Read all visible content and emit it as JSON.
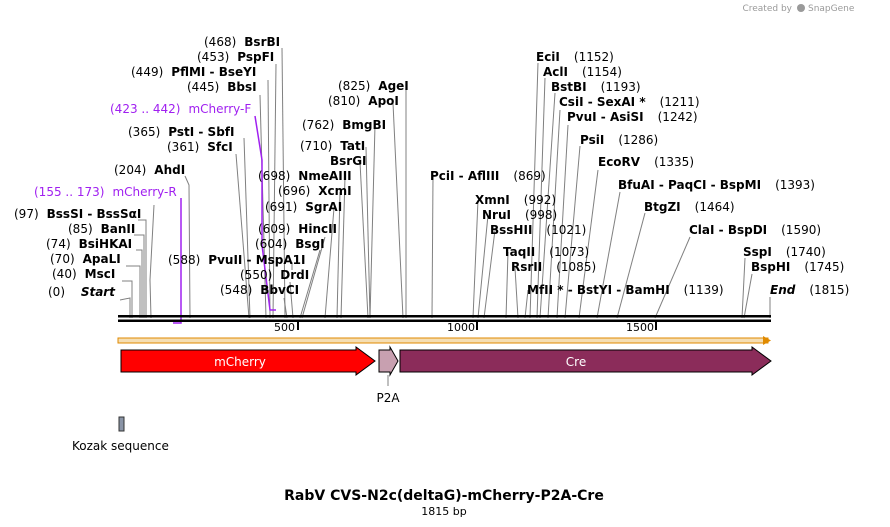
{
  "title": "RabV CVS-N2c(deltaG)-mCherry-P2A-Cre",
  "length_label": "1815 bp",
  "length": 1815,
  "credit": {
    "prefix": "Created by",
    "brand": "SnapGene"
  },
  "colors": {
    "mcherry": "#ff0000",
    "p2a": "#c8a0b0",
    "cre": "#8b2c5a",
    "primer": "#a020f0",
    "kozak": "#8a94a6"
  },
  "axis_ticks": [
    "500",
    "1000",
    "1500"
  ],
  "ends": {
    "start": {
      "pos": "(0)",
      "name": "Start"
    },
    "end": {
      "pos": "(1815)",
      "name": "End"
    }
  },
  "enzymes_left": [
    {
      "pos": "(40)",
      "name": "MscI"
    },
    {
      "pos": "(70)",
      "name": "ApaLI"
    },
    {
      "pos": "(74)",
      "name": "BsiHKAI"
    },
    {
      "pos": "(85)",
      "name": "BanII"
    },
    {
      "pos": "(97)",
      "name": "BssSI  -  BssSαI"
    },
    {
      "pos": "(204)",
      "name": "AhdI"
    },
    {
      "pos": "(361)",
      "name": "SfcI"
    },
    {
      "pos": "(365)",
      "name": "PstI  -  SbfI"
    },
    {
      "pos": "(445)",
      "name": "BbsI"
    },
    {
      "pos": "(449)",
      "name": "PflMI  -  BseYI"
    },
    {
      "pos": "(453)",
      "name": "PspFI"
    },
    {
      "pos": "(468)",
      "name": "BsrBI"
    }
  ],
  "enzymes_mid": [
    {
      "pos": "(548)",
      "name": "BbvCI"
    },
    {
      "pos": "(550)",
      "name": "DrdI"
    },
    {
      "pos": "(604)",
      "name": "BsgI"
    },
    {
      "pos": "(588)",
      "name": "PvuII   -  MspA1I"
    },
    {
      "pos": "(609)",
      "name": "HincII"
    },
    {
      "pos": "(691)",
      "name": "SgrAI"
    },
    {
      "pos": "(696)",
      "name": "XcmI"
    },
    {
      "pos": "(698)",
      "name": "NmeAIII"
    },
    {
      "pos": "(710)",
      "name": "BsrGI"
    },
    {
      "pos": "(710)",
      "name": "TatI"
    },
    {
      "pos": "(762)",
      "name": "BmgBI"
    },
    {
      "pos": "(810)",
      "name": "ApoI"
    },
    {
      "pos": "(825)",
      "name": "AgeI"
    }
  ],
  "enzymes_right": [
    {
      "pos": "(869)",
      "name": "PciI  -  AflIII"
    },
    {
      "pos": "(992)",
      "name": "XmnI"
    },
    {
      "pos": "(998)",
      "name": "NruI"
    },
    {
      "pos": "(1021)",
      "name": "BssHII"
    },
    {
      "pos": "(1073)",
      "name": "TaqII"
    },
    {
      "pos": "(1085)",
      "name": "RsrII"
    },
    {
      "pos": "(1139)",
      "name": "MfII *  -  BstYI  -  BamHI"
    },
    {
      "pos": "(1152)",
      "name": "EciI"
    },
    {
      "pos": "(1154)",
      "name": "AclI"
    },
    {
      "pos": "(1193)",
      "name": "BstBI"
    },
    {
      "pos": "(1211)",
      "name": "CsiI  -  SexAI *"
    },
    {
      "pos": "(1242)",
      "name": "PvuI  -  AsiSI"
    },
    {
      "pos": "(1286)",
      "name": "PsiI"
    },
    {
      "pos": "(1335)",
      "name": "EcoRV"
    },
    {
      "pos": "(1393)",
      "name": "BfuAI  -  PaqCI  -  BspMI"
    },
    {
      "pos": "(1464)",
      "name": "BtgZI"
    },
    {
      "pos": "(1590)",
      "name": "ClaI  -  BspDI"
    },
    {
      "pos": "(1740)",
      "name": "SspI"
    },
    {
      "pos": "(1745)",
      "name": "BspHI"
    }
  ],
  "primers": [
    {
      "range": "(155 .. 173)",
      "name": "mCherry-R"
    },
    {
      "range": "(423 .. 442)",
      "name": "mCherry-F"
    }
  ],
  "features": [
    {
      "name": "mCherry"
    },
    {
      "name": "P2A"
    },
    {
      "name": "Cre"
    },
    {
      "name": "Kozak sequence"
    }
  ]
}
